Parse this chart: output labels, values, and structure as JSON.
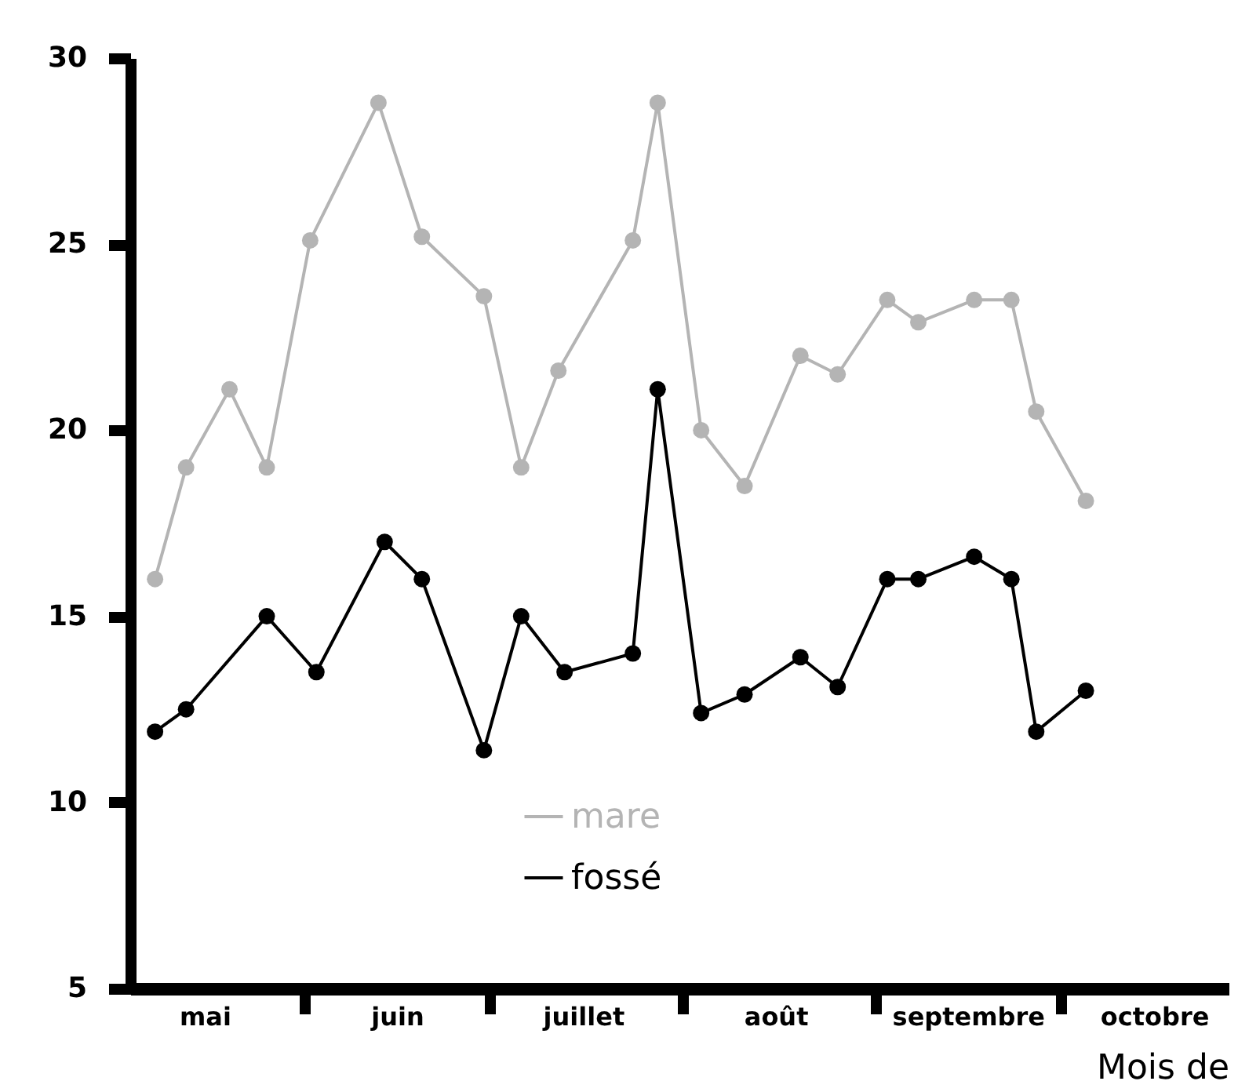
{
  "chart_data": {
    "type": "line",
    "xlabel": "Mois de",
    "xlim": [
      "--05-04",
      "--10-28"
    ],
    "xticks": [
      {
        "value": "--05-16",
        "label": "mai"
      },
      {
        "value": "--06-01",
        "label": null
      },
      {
        "value": "--06-16",
        "label": "juin"
      },
      {
        "value": "--07-01",
        "label": null
      },
      {
        "value": "--07-16",
        "label": "juillet"
      },
      {
        "value": "--08-01",
        "label": null
      },
      {
        "value": "--08-16",
        "label": "août"
      },
      {
        "value": "--09-01",
        "label": null
      },
      {
        "value": "--09-16",
        "label": "septembre"
      },
      {
        "value": "--10-01",
        "label": null
      },
      {
        "value": "--10-16",
        "label": "octobre"
      }
    ],
    "ylim": [
      5,
      30
    ],
    "yticks": [
      5,
      10,
      15,
      20,
      25,
      30
    ],
    "grid": false,
    "legend": "bottom",
    "marker": "circle",
    "line_style": "solid",
    "series": [
      {
        "name": "mare",
        "color": "#b4b4b4",
        "x": [
          "--05-08",
          "--05-13",
          "--05-20",
          "--05-26",
          "--06-02",
          "--06-13",
          "--06-20",
          "--06-30",
          "--07-06",
          "--07-12",
          "--07-24",
          "--07-28",
          "--08-04",
          "--08-11",
          "--08-20",
          "--08-26",
          "--09-03",
          "--09-08",
          "--09-17",
          "--09-23",
          "--09-27",
          "--10-05"
        ],
        "values": [
          16.0,
          19.0,
          21.1,
          19.0,
          25.1,
          28.8,
          25.2,
          23.6,
          19.0,
          21.6,
          25.1,
          28.8,
          20.0,
          18.5,
          22.0,
          21.5,
          23.5,
          22.9,
          23.5,
          23.5,
          20.5,
          18.1
        ]
      },
      {
        "name": "fossé",
        "color": "#000000",
        "x": [
          "--05-08",
          "--05-13",
          "--05-26",
          "--06-03",
          "--06-14",
          "--06-20",
          "--06-30",
          "--07-06",
          "--07-13",
          "--07-24",
          "--07-28",
          "--08-04",
          "--08-11",
          "--08-20",
          "--08-26",
          "--09-03",
          "--09-08",
          "--09-17",
          "--09-23",
          "--09-27",
          "--10-05"
        ],
        "values": [
          11.9,
          12.5,
          15.0,
          13.5,
          17.0,
          16.0,
          11.4,
          15.0,
          13.5,
          14.0,
          21.1,
          12.4,
          12.9,
          13.9,
          13.1,
          16.0,
          16.0,
          16.6,
          16.0,
          11.9,
          13.0
        ]
      }
    ]
  }
}
